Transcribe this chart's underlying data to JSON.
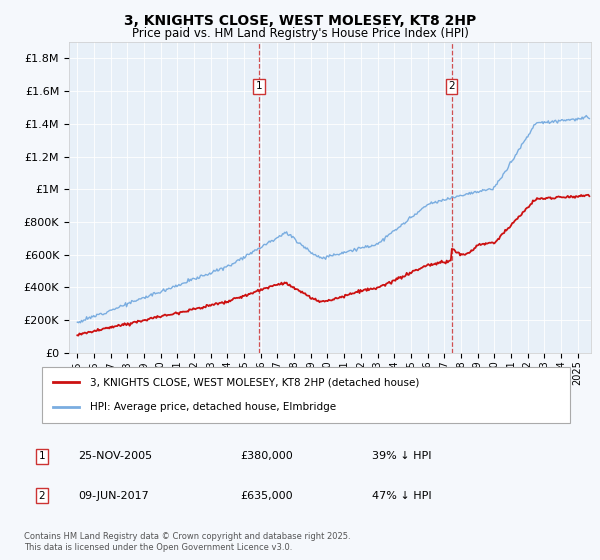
{
  "title": "3, KNIGHTS CLOSE, WEST MOLESEY, KT8 2HP",
  "subtitle": "Price paid vs. HM Land Registry's House Price Index (HPI)",
  "ylabel_ticks": [
    "£0",
    "£200K",
    "£400K",
    "£600K",
    "£800K",
    "£1M",
    "£1.2M",
    "£1.4M",
    "£1.6M",
    "£1.8M"
  ],
  "ylim": [
    0,
    1900000
  ],
  "xlim_start": 1994.5,
  "xlim_end": 2025.8,
  "hpi_color": "#7aade0",
  "price_color": "#cc1111",
  "fig_bg": "#f5f8fc",
  "plot_bg": "#e8f0f8",
  "marker1_x": 2005.9,
  "marker2_x": 2017.44,
  "marker1_date": "25-NOV-2005",
  "marker1_price": "£380,000",
  "marker1_hpi": "39% ↓ HPI",
  "marker2_date": "09-JUN-2017",
  "marker2_price": "£635,000",
  "marker2_hpi": "47% ↓ HPI",
  "legend_line1": "3, KNIGHTS CLOSE, WEST MOLESEY, KT8 2HP (detached house)",
  "legend_line2": "HPI: Average price, detached house, Elmbridge",
  "footnote": "Contains HM Land Registry data © Crown copyright and database right 2025.\nThis data is licensed under the Open Government Licence v3.0.",
  "xticks": [
    1995,
    1996,
    1997,
    1998,
    1999,
    2000,
    2001,
    2002,
    2003,
    2004,
    2005,
    2006,
    2007,
    2008,
    2009,
    2010,
    2011,
    2012,
    2013,
    2014,
    2015,
    2016,
    2017,
    2018,
    2019,
    2020,
    2021,
    2022,
    2023,
    2024,
    2025
  ]
}
